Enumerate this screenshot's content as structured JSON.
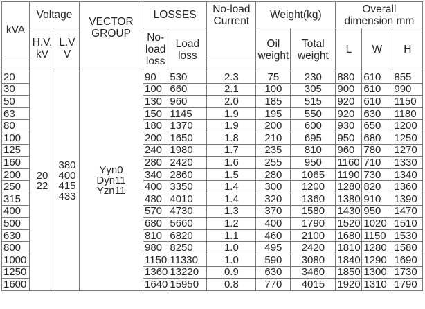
{
  "headers": {
    "kva": "kVA",
    "voltage": "Voltage",
    "hv": [
      "H.V.",
      "kV"
    ],
    "lv": [
      "L.V",
      "V"
    ],
    "vector_group": [
      "VECTOR",
      "GROUP"
    ],
    "losses": "LOSSES",
    "noload_loss": [
      "No-",
      "load",
      "loss"
    ],
    "load_loss": [
      "Load",
      "loss"
    ],
    "noload_current": [
      "No-load",
      "Current"
    ],
    "weight": "Weight(kg)",
    "oil_weight": [
      "Oil",
      "weight"
    ],
    "total_weight": [
      "Total",
      "weight"
    ],
    "dimension": [
      "Overall",
      "dimension mm"
    ],
    "dim_l": "L",
    "dim_w": "W",
    "dim_h": "H"
  },
  "merged": {
    "hv_values": [
      "20",
      "22"
    ],
    "lv_values": [
      "380",
      "400",
      "415",
      "433"
    ],
    "vector_values": [
      "Yyn0",
      "Dyn11",
      "Yzn11"
    ]
  },
  "rows": [
    {
      "kva": "20",
      "noload": "90",
      "load": "530",
      "current": "2.3",
      "oil": "75",
      "total": "230",
      "l": "880",
      "w": "610",
      "h": "855"
    },
    {
      "kva": "30",
      "noload": "100",
      "load": "660",
      "current": "2.1",
      "oil": "100",
      "total": "305",
      "l": "900",
      "w": "610",
      "h": "990"
    },
    {
      "kva": "50",
      "noload": "130",
      "load": "960",
      "current": "2.0",
      "oil": "185",
      "total": "515",
      "l": "920",
      "w": "610",
      "h": "1150"
    },
    {
      "kva": "63",
      "noload": "150",
      "load": "1145",
      "current": "1.9",
      "oil": "195",
      "total": "550",
      "l": "920",
      "w": "630",
      "h": "1180"
    },
    {
      "kva": "80",
      "noload": "180",
      "load": "1370",
      "current": "1.9",
      "oil": "200",
      "total": "600",
      "l": "930",
      "w": "650",
      "h": "1200"
    },
    {
      "kva": "100",
      "noload": "200",
      "load": "1650",
      "current": "1.8",
      "oil": "210",
      "total": "695",
      "l": "950",
      "w": "680",
      "h": "1250"
    },
    {
      "kva": "125",
      "noload": "240",
      "load": "1980",
      "current": "1.7",
      "oil": "235",
      "total": "810",
      "l": "960",
      "w": "780",
      "h": "1270"
    },
    {
      "kva": "160",
      "noload": "280",
      "load": "2420",
      "current": "1.6",
      "oil": "255",
      "total": "950",
      "l": "1160",
      "w": "710",
      "h": "1330"
    },
    {
      "kva": "200",
      "noload": "340",
      "load": "2860",
      "current": "1.5",
      "oil": "280",
      "total": "1065",
      "l": "1190",
      "w": "730",
      "h": "1340"
    },
    {
      "kva": "250",
      "noload": "400",
      "load": "3350",
      "current": "1.4",
      "oil": "300",
      "total": "1200",
      "l": "1280",
      "w": "820",
      "h": "1360"
    },
    {
      "kva": "315",
      "noload": "480",
      "load": "4010",
      "current": "1.4",
      "oil": "320",
      "total": "1360",
      "l": "1380",
      "w": "910",
      "h": "1390"
    },
    {
      "kva": "400",
      "noload": "570",
      "load": "4730",
      "current": "1.3",
      "oil": "370",
      "total": "1580",
      "l": "1430",
      "w": "950",
      "h": "1470"
    },
    {
      "kva": "500",
      "noload": "680",
      "load": "5660",
      "current": "1.2",
      "oil": "400",
      "total": "1790",
      "l": "1520",
      "w": "1020",
      "h": "1510"
    },
    {
      "kva": "630",
      "noload": "810",
      "load": "6820",
      "current": "1.1",
      "oil": "460",
      "total": "2100",
      "l": "1680",
      "w": "1150",
      "h": "1530"
    },
    {
      "kva": "800",
      "noload": "980",
      "load": "8250",
      "current": "1.0",
      "oil": "495",
      "total": "2420",
      "l": "1810",
      "w": "1280",
      "h": "1580"
    },
    {
      "kva": "1000",
      "noload": "1150",
      "load": "11330",
      "current": "1.0",
      "oil": "590",
      "total": "3080",
      "l": "1840",
      "w": "1290",
      "h": "1690"
    },
    {
      "kva": "1250",
      "noload": "1360",
      "load": "13220",
      "current": "0.9",
      "oil": "630",
      "total": "3460",
      "l": "1850",
      "w": "1300",
      "h": "1730"
    },
    {
      "kva": "1600",
      "noload": "1640",
      "load": "15950",
      "current": "0.8",
      "oil": "770",
      "total": "4015",
      "l": "1920",
      "w": "1310",
      "h": "1790"
    }
  ]
}
